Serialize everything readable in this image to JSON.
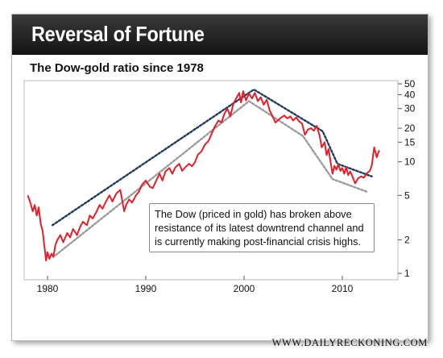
{
  "banner": {
    "title": "Reversal of Fortune"
  },
  "subtitle": "The Dow-gold ratio since 1978",
  "annotation": "The Dow (priced in gold) has broken above resistance of its latest downtrend channel and is currently making post-financial crisis highs.",
  "source": "WWW.DAILYRECKONING.COM",
  "colors": {
    "series": "#e0202a",
    "upper_channel": "#1f3a5f",
    "lower_channel": "#9a9a9a",
    "banner": "#1c1c1c"
  },
  "chart_data": {
    "type": "line",
    "title": "The Dow-gold ratio since 1978",
    "xlabel": "",
    "ylabel": "",
    "x_scale": "linear",
    "y_scale": "log",
    "xlim": [
      1978,
      2014.8
    ],
    "ylim": [
      1,
      50
    ],
    "x_ticks": [
      1980,
      1990,
      2000,
      2010
    ],
    "y_ticks": [
      1,
      2,
      5,
      10,
      15,
      20,
      30,
      40,
      50
    ],
    "grid": false,
    "series": [
      {
        "type": "line",
        "color": "#e0202a",
        "points": [
          [
            1978.0,
            5.0
          ],
          [
            1978.25,
            4.3
          ],
          [
            1978.5,
            3.6
          ],
          [
            1978.7,
            4.1
          ],
          [
            1978.9,
            3.3
          ],
          [
            1979.1,
            3.9
          ],
          [
            1979.3,
            2.8
          ],
          [
            1979.5,
            2.4
          ],
          [
            1979.7,
            1.7
          ],
          [
            1979.85,
            1.3
          ],
          [
            1980.0,
            1.55
          ],
          [
            1980.2,
            1.35
          ],
          [
            1980.4,
            1.5
          ],
          [
            1980.6,
            1.4
          ],
          [
            1980.8,
            1.8
          ],
          [
            1981.0,
            2.0
          ],
          [
            1981.3,
            2.2
          ],
          [
            1981.6,
            1.9
          ],
          [
            1982.0,
            2.3
          ],
          [
            1982.3,
            2.1
          ],
          [
            1982.6,
            2.5
          ],
          [
            1983.0,
            2.2
          ],
          [
            1983.3,
            2.6
          ],
          [
            1983.6,
            2.9
          ],
          [
            1984.0,
            2.7
          ],
          [
            1984.3,
            3.3
          ],
          [
            1984.6,
            3.1
          ],
          [
            1985.0,
            3.6
          ],
          [
            1985.3,
            4.1
          ],
          [
            1985.6,
            3.8
          ],
          [
            1986.0,
            4.5
          ],
          [
            1986.3,
            5.0
          ],
          [
            1986.6,
            4.4
          ],
          [
            1987.0,
            5.2
          ],
          [
            1987.4,
            5.6
          ],
          [
            1987.8,
            3.6
          ],
          [
            1988.0,
            4.1
          ],
          [
            1988.3,
            4.6
          ],
          [
            1988.6,
            4.3
          ],
          [
            1989.0,
            5.0
          ],
          [
            1989.3,
            5.4
          ],
          [
            1989.6,
            6.2
          ],
          [
            1990.0,
            6.8
          ],
          [
            1990.4,
            6.0
          ],
          [
            1990.7,
            5.8
          ],
          [
            1991.0,
            6.6
          ],
          [
            1991.4,
            7.8
          ],
          [
            1991.7,
            6.8
          ],
          [
            1992.0,
            8.2
          ],
          [
            1992.4,
            8.8
          ],
          [
            1992.7,
            7.8
          ],
          [
            1993.0,
            8.9
          ],
          [
            1993.4,
            9.6
          ],
          [
            1993.7,
            8.3
          ],
          [
            1994.0,
            8.9
          ],
          [
            1994.4,
            9.6
          ],
          [
            1994.7,
            9.1
          ],
          [
            1995.0,
            9.9
          ],
          [
            1995.3,
            11.6
          ],
          [
            1995.7,
            12.5
          ],
          [
            1996.0,
            14.2
          ],
          [
            1996.4,
            15.5
          ],
          [
            1996.7,
            17.8
          ],
          [
            1997.0,
            20.5
          ],
          [
            1997.4,
            23.5
          ],
          [
            1997.7,
            22.5
          ],
          [
            1998.0,
            27.0
          ],
          [
            1998.3,
            30.0
          ],
          [
            1998.6,
            25.5
          ],
          [
            1998.9,
            33.0
          ],
          [
            1999.2,
            37.0
          ],
          [
            1999.5,
            41.5
          ],
          [
            1999.7,
            34.0
          ],
          [
            1999.9,
            43.0
          ],
          [
            2000.2,
            35.5
          ],
          [
            2000.5,
            41.0
          ],
          [
            2000.8,
            37.0
          ],
          [
            2001.1,
            41.5
          ],
          [
            2001.4,
            35.0
          ],
          [
            2001.7,
            38.0
          ],
          [
            2002.0,
            32.5
          ],
          [
            2002.3,
            36.0
          ],
          [
            2002.6,
            29.0
          ],
          [
            2002.9,
            25.5
          ],
          [
            2003.2,
            22.5
          ],
          [
            2003.5,
            23.8
          ],
          [
            2003.8,
            25.0
          ],
          [
            2004.1,
            26.0
          ],
          [
            2004.4,
            24.5
          ],
          [
            2004.7,
            25.5
          ],
          [
            2005.0,
            23.5
          ],
          [
            2005.3,
            25.0
          ],
          [
            2005.6,
            23.0
          ],
          [
            2005.9,
            22.0
          ],
          [
            2006.2,
            17.5
          ],
          [
            2006.5,
            19.5
          ],
          [
            2006.8,
            20.0
          ],
          [
            2007.1,
            19.0
          ],
          [
            2007.4,
            21.0
          ],
          [
            2007.7,
            17.0
          ],
          [
            2007.9,
            13.5
          ],
          [
            2008.2,
            15.0
          ],
          [
            2008.4,
            11.5
          ],
          [
            2008.6,
            13.0
          ],
          [
            2008.8,
            10.0
          ],
          [
            2009.0,
            7.8
          ],
          [
            2009.2,
            9.2
          ],
          [
            2009.4,
            8.5
          ],
          [
            2009.6,
            9.5
          ],
          [
            2009.8,
            8.3
          ],
          [
            2010.0,
            8.8
          ],
          [
            2010.2,
            7.8
          ],
          [
            2010.4,
            9.0
          ],
          [
            2010.6,
            7.6
          ],
          [
            2010.8,
            8.2
          ],
          [
            2011.0,
            7.5
          ],
          [
            2011.3,
            6.4
          ],
          [
            2011.6,
            7.1
          ],
          [
            2011.9,
            7.4
          ],
          [
            2012.2,
            7.2
          ],
          [
            2012.5,
            7.9
          ],
          [
            2012.8,
            8.3
          ],
          [
            2013.0,
            9.3
          ],
          [
            2013.25,
            13.5
          ],
          [
            2013.5,
            11.0
          ],
          [
            2013.75,
            12.7
          ]
        ]
      },
      {
        "type": "trendline",
        "color": "#1f3a5f",
        "points": [
          [
            1980.5,
            2.7
          ],
          [
            2001.0,
            44.5
          ],
          [
            2008.0,
            18.8
          ],
          [
            2009.5,
            9.6
          ],
          [
            2013.0,
            7.4
          ]
        ]
      },
      {
        "type": "trendline",
        "color": "#9a9a9a",
        "points": [
          [
            1980.8,
            1.45
          ],
          [
            2000.5,
            35.0
          ],
          [
            2006.0,
            17.0
          ],
          [
            2009.0,
            7.0
          ],
          [
            2012.5,
            5.4
          ]
        ]
      }
    ]
  }
}
